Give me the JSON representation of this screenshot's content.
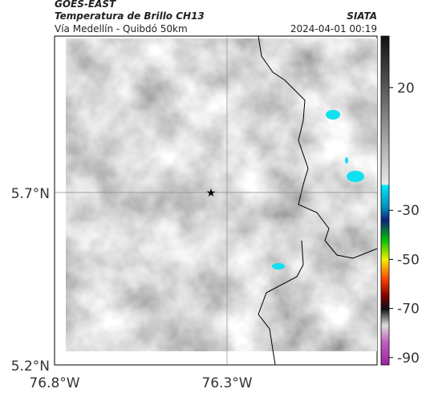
{
  "header": {
    "satellite": "GOES-EAST",
    "product": "Temperatura de Brillo CH13",
    "region": "Vía Medellín - Quibdó 50km",
    "source": "SIATA",
    "timestamp": "2024-04-01 00:19"
  },
  "map": {
    "lat_labels": [
      "5.7°N",
      "5.2°N"
    ],
    "lon_labels": [
      "76.8°W",
      "76.3°W"
    ]
  },
  "colorbar": {
    "lim": [
      41,
      -93
    ],
    "ticks": [
      20,
      -30,
      -50,
      -70,
      -90
    ]
  }
}
